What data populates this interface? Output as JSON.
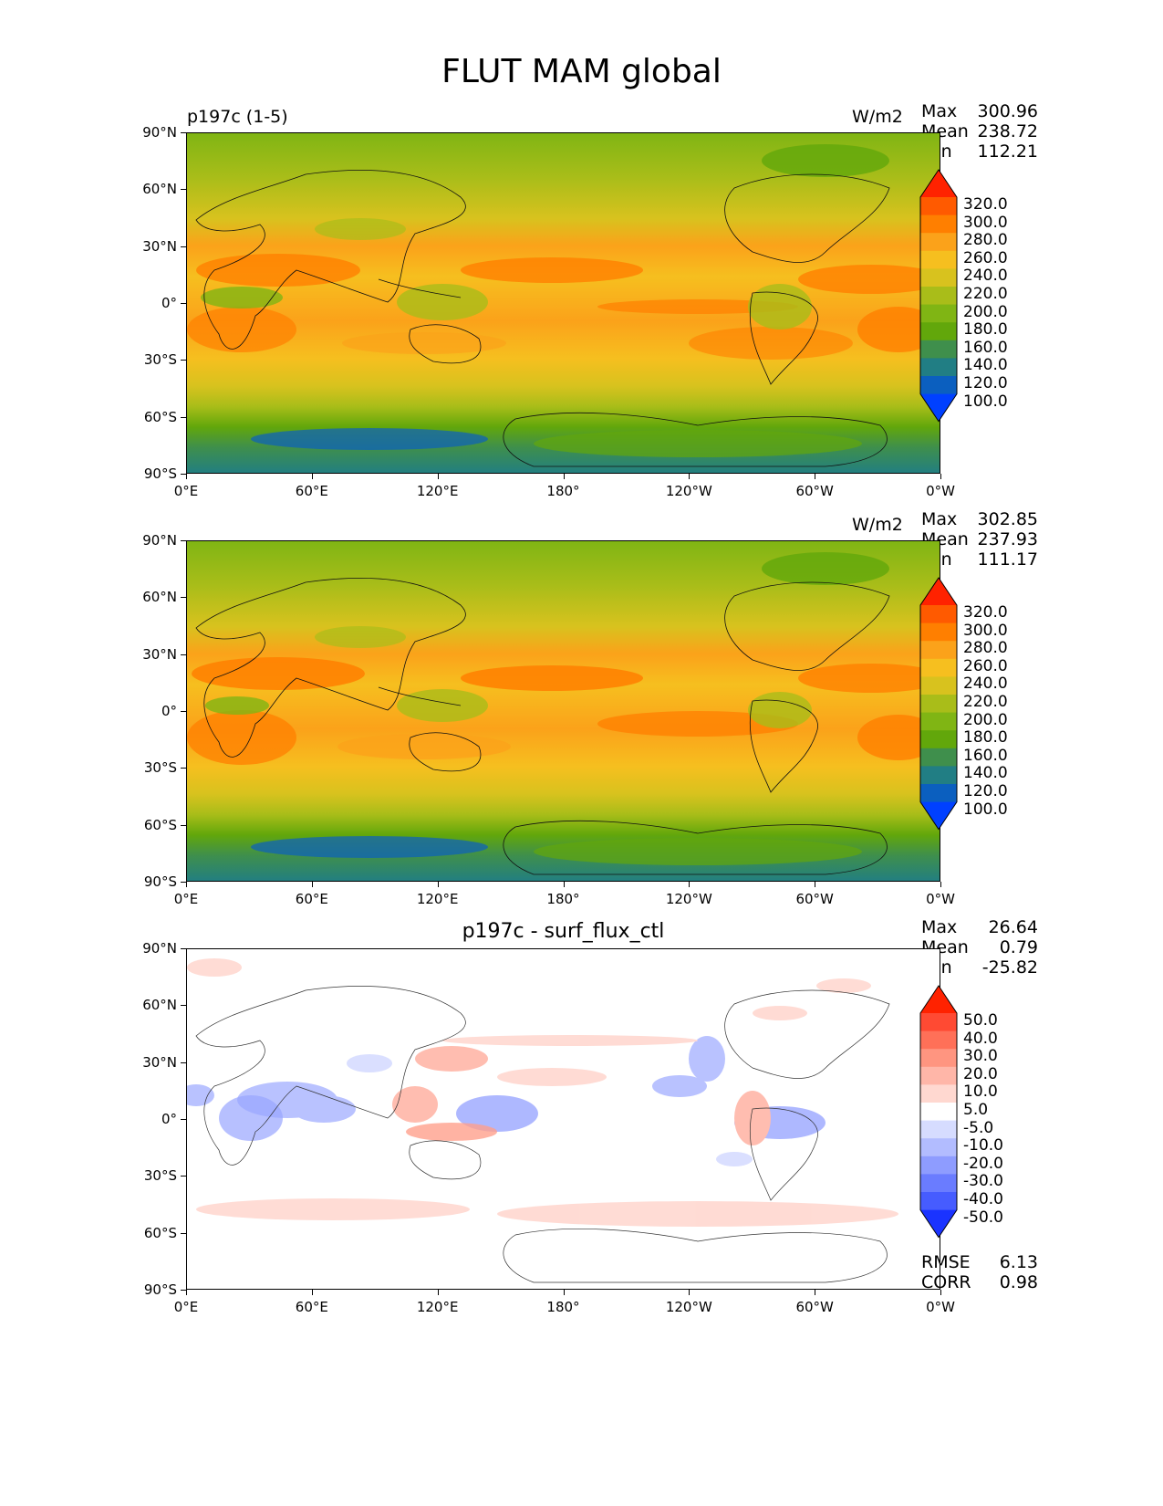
{
  "figure": {
    "title": "FLUT MAM global"
  },
  "panels": [
    {
      "id": "test",
      "left_label": "p197c (1-5)",
      "center_label": "",
      "units": "W/m2",
      "stats": {
        "max_label": "Max",
        "max": "300.96",
        "mean_label": "Mean",
        "mean": "238.72",
        "min_label": "Min",
        "min": "112.21"
      },
      "colorbar_ticks": [
        "320.0",
        "300.0",
        "280.0",
        "260.0",
        "240.0",
        "220.0",
        "200.0",
        "180.0",
        "160.0",
        "140.0",
        "120.0",
        "100.0"
      ],
      "colorbar_colors": [
        "#ff2200",
        "#ff5a00",
        "#ff7f00",
        "#fba21a",
        "#f6bf1f",
        "#d8c21e",
        "#a9bd19",
        "#80b514",
        "#62a70b",
        "#3f8f4c",
        "#217e84",
        "#0b5fbf",
        "#0040ff"
      ]
    },
    {
      "id": "reference",
      "left_label": "",
      "center_label": "",
      "units": "W/m2",
      "stats": {
        "max_label": "Max",
        "max": "302.85",
        "mean_label": "Mean",
        "mean": "237.93",
        "min_label": "Min",
        "min": "111.17"
      },
      "colorbar_ticks": [
        "320.0",
        "300.0",
        "280.0",
        "260.0",
        "240.0",
        "220.0",
        "200.0",
        "180.0",
        "160.0",
        "140.0",
        "120.0",
        "100.0"
      ],
      "colorbar_colors": [
        "#ff2200",
        "#ff5a00",
        "#ff7f00",
        "#fba21a",
        "#f6bf1f",
        "#d8c21e",
        "#a9bd19",
        "#80b514",
        "#62a70b",
        "#3f8f4c",
        "#217e84",
        "#0b5fbf",
        "#0040ff"
      ]
    },
    {
      "id": "difference",
      "left_label": "",
      "center_label": "p197c - surf_flux_ctl",
      "units": "",
      "stats": {
        "max_label": "Max",
        "max": "26.64",
        "mean_label": "Mean",
        "mean": "0.79",
        "min_label": "Min",
        "min": "-25.82"
      },
      "colorbar_ticks": [
        "50.0",
        "40.0",
        "30.0",
        "20.0",
        "10.0",
        "5.0",
        "-5.0",
        "-10.0",
        "-20.0",
        "-30.0",
        "-40.0",
        "-50.0"
      ],
      "colorbar_colors": [
        "#ff2200",
        "#ff4a33",
        "#ff7058",
        "#ff9580",
        "#ffb6a8",
        "#ffd8d0",
        "#ffffff",
        "#d6dcff",
        "#b2bcff",
        "#8e9cff",
        "#6a7cff",
        "#465cff",
        "#1a33ff"
      ],
      "rmse_label": "RMSE",
      "rmse": "6.13",
      "corr_label": "CORR",
      "corr": "0.98"
    }
  ],
  "axes": {
    "lat_ticks": [
      "90°N",
      "60°N",
      "30°N",
      "0°",
      "30°S",
      "60°S",
      "90°S"
    ],
    "lon_ticks": [
      "0°E",
      "60°E",
      "120°E",
      "180°",
      "120°W",
      "60°W",
      "0°W"
    ]
  },
  "chart_data": [
    {
      "type": "heatmap",
      "title": "p197c (1-5)",
      "units": "W/m2",
      "variable": "FLUT",
      "season": "MAM",
      "region": "global",
      "x_range": [
        0,
        360
      ],
      "y_range": [
        -90,
        90
      ],
      "zonal_mean_by_lat": {
        "lat": [
          75,
          60,
          45,
          30,
          15,
          0,
          -15,
          -30,
          -45,
          -60,
          -75,
          -85
        ],
        "value": [
          195,
          210,
          225,
          245,
          265,
          245,
          265,
          255,
          230,
          210,
          170,
          135
        ]
      },
      "max": 300.96,
      "mean": 238.72,
      "min": 112.21,
      "levels": [
        100,
        120,
        140,
        160,
        180,
        200,
        220,
        240,
        260,
        280,
        300,
        320
      ]
    },
    {
      "type": "heatmap",
      "title": "",
      "units": "W/m2",
      "x_range": [
        0,
        360
      ],
      "y_range": [
        -90,
        90
      ],
      "zonal_mean_by_lat": {
        "lat": [
          75,
          60,
          45,
          30,
          15,
          0,
          -15,
          -30,
          -45,
          -60,
          -75,
          -85
        ],
        "value": [
          195,
          210,
          225,
          248,
          268,
          245,
          268,
          255,
          230,
          210,
          170,
          135
        ]
      },
      "max": 302.85,
      "mean": 237.93,
      "min": 111.17,
      "levels": [
        100,
        120,
        140,
        160,
        180,
        200,
        220,
        240,
        260,
        280,
        300,
        320
      ]
    },
    {
      "type": "heatmap",
      "title": "p197c - surf_flux_ctl",
      "x_range": [
        0,
        360
      ],
      "y_range": [
        -90,
        90
      ],
      "max": 26.64,
      "mean": 0.79,
      "min": -25.82,
      "rmse": 6.13,
      "corr": 0.98,
      "levels": [
        -50,
        -40,
        -30,
        -20,
        -10,
        -5,
        5,
        10,
        20,
        30,
        40,
        50
      ]
    }
  ]
}
